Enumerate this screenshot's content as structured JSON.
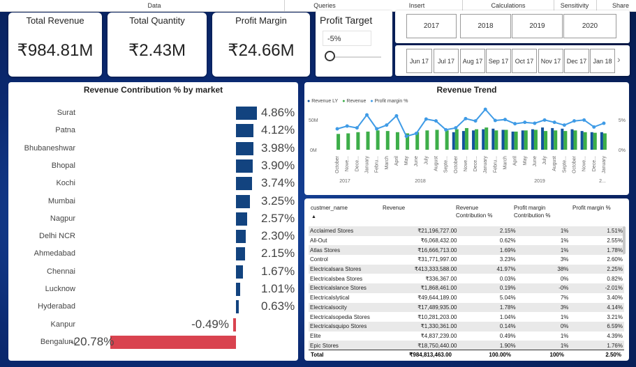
{
  "ribbon": {
    "tabs": [
      "Data",
      "Queries",
      "Insert",
      "Calculations",
      "Sensitivity",
      "Share"
    ]
  },
  "kpis": [
    {
      "title": "Total Revenue",
      "value": "₹984.81M"
    },
    {
      "title": "Total Quantity",
      "value": "₹2.43M"
    },
    {
      "title": "Profit Margin",
      "value": "₹24.66M"
    }
  ],
  "profit_target": {
    "title": "Profit Target",
    "value": "-5%"
  },
  "years": [
    "2017",
    "2018",
    "2019",
    "2020"
  ],
  "months": [
    "Jun 17",
    "Jul 17",
    "Aug 17",
    "Sep 17",
    "Oct 17",
    "Nov 17",
    "Dec 17",
    "Jan 18"
  ],
  "market_chart": {
    "title": "Revenue Contribution % by market",
    "chart_data": {
      "type": "bar",
      "categories": [
        "Surat",
        "Patna",
        "Bhubaneshwar",
        "Bhopal",
        "Kochi",
        "Mumbai",
        "Nagpur",
        "Delhi NCR",
        "Ahmedabad",
        "Chennai",
        "Lucknow",
        "Hyderabad",
        "Kanpur",
        "Bengaluru"
      ],
      "values": [
        4.86,
        4.12,
        3.98,
        3.9,
        3.74,
        3.25,
        2.57,
        2.3,
        2.15,
        1.67,
        1.01,
        0.63,
        -0.49,
        -20.78
      ],
      "labels": [
        "4.86%",
        "4.12%",
        "3.98%",
        "3.90%",
        "3.74%",
        "3.25%",
        "2.57%",
        "2.30%",
        "2.15%",
        "1.67%",
        "1.01%",
        "0.63%",
        "-0.49%",
        "-20.78%"
      ],
      "positive_color": "#12437f",
      "negative_color": "#d9434f"
    }
  },
  "trend_chart": {
    "title": "Revenue Trend",
    "legend": [
      "Revenue LY",
      "Revenue",
      "Profit margin %"
    ],
    "colors": {
      "revenue_ly": "#12539c",
      "revenue": "#3dae49",
      "margin": "#3f9be6"
    },
    "y_left_ticks": [
      "50M",
      "0M"
    ],
    "y_right_ticks": [
      "5%",
      "0%"
    ],
    "x_months": [
      "October",
      "Nove...",
      "Dece...",
      "January",
      "Febru...",
      "March",
      "April",
      "May",
      "June",
      "July",
      "August",
      "Septe...",
      "October",
      "Nove...",
      "Dece...",
      "January",
      "Febru...",
      "March",
      "April",
      "May",
      "June",
      "July",
      "August",
      "Septe...",
      "October",
      "Nove...",
      "Dece...",
      "January"
    ],
    "x_years": [
      "2017",
      "2018",
      "2019",
      "2..."
    ],
    "chart_data": {
      "type": "bar",
      "revenue_ly": [
        0,
        0,
        0,
        0,
        0,
        0,
        0,
        0,
        0,
        0,
        0,
        0,
        30,
        32,
        33,
        35,
        36,
        34,
        31,
        33,
        35,
        38,
        37,
        36,
        35,
        32,
        30,
        30
      ],
      "revenue": [
        27,
        28,
        30,
        31,
        33,
        32,
        30,
        28,
        30,
        33,
        34,
        33,
        35,
        37,
        35,
        38,
        33,
        34,
        31,
        33,
        34,
        32,
        33,
        32,
        33,
        30,
        29,
        28
      ],
      "profit_margin_pct": [
        1.8,
        2.4,
        2.0,
        4.8,
        1.8,
        2.6,
        4.6,
        0.2,
        0.8,
        3.9,
        3.5,
        1.6,
        2.0,
        4.0,
        3.5,
        6.0,
        3.6,
        3.8,
        2.9,
        3.2,
        3.0,
        3.7,
        3.2,
        2.6,
        3.5,
        3.7,
        2.2,
        3.0
      ]
    }
  },
  "table": {
    "headers": [
      "custmer_name",
      "Revenue",
      "Revenue Contribution %",
      "Profit margin Contribution %",
      "Profit margin %"
    ],
    "rows": [
      [
        "Acclaimed Stores",
        "₹21,196,727.00",
        "2.15%",
        "1%",
        "1.51%"
      ],
      [
        "All-Out",
        "₹6,068,432.00",
        "0.62%",
        "1%",
        "2.55%"
      ],
      [
        "Atlas Stores",
        "₹16,666,713.00",
        "1.69%",
        "1%",
        "1.78%"
      ],
      [
        "Control",
        "₹31,771,997.00",
        "3.23%",
        "3%",
        "2.60%"
      ],
      [
        "Electricalsara Stores",
        "₹413,333,588.00",
        "41.97%",
        "38%",
        "2.25%"
      ],
      [
        "Electricalsbea Stores",
        "₹336,367.00",
        "0.03%",
        "0%",
        "0.82%"
      ],
      [
        "Electricalslance Stores",
        "₹1,868,461.00",
        "0.19%",
        "-0%",
        "-2.01%"
      ],
      [
        "Electricalslytical",
        "₹49,644,189.00",
        "5.04%",
        "7%",
        "3.40%"
      ],
      [
        "Electricalsocity",
        "₹17,489,935.00",
        "1.78%",
        "3%",
        "4.14%"
      ],
      [
        "Electricalsopedia Stores",
        "₹10,281,203.00",
        "1.04%",
        "1%",
        "3.21%"
      ],
      [
        "Electricalsquipo Stores",
        "₹1,330,361.00",
        "0.14%",
        "0%",
        "6.59%"
      ],
      [
        "Elite",
        "₹4,837,239.00",
        "0.49%",
        "1%",
        "4.39%"
      ],
      [
        "Epic Stores",
        "₹18,750,440.00",
        "1.90%",
        "1%",
        "1.76%"
      ]
    ],
    "total": [
      "Total",
      "₹984,813,463.00",
      "100.00%",
      "100%",
      "2.50%"
    ]
  }
}
